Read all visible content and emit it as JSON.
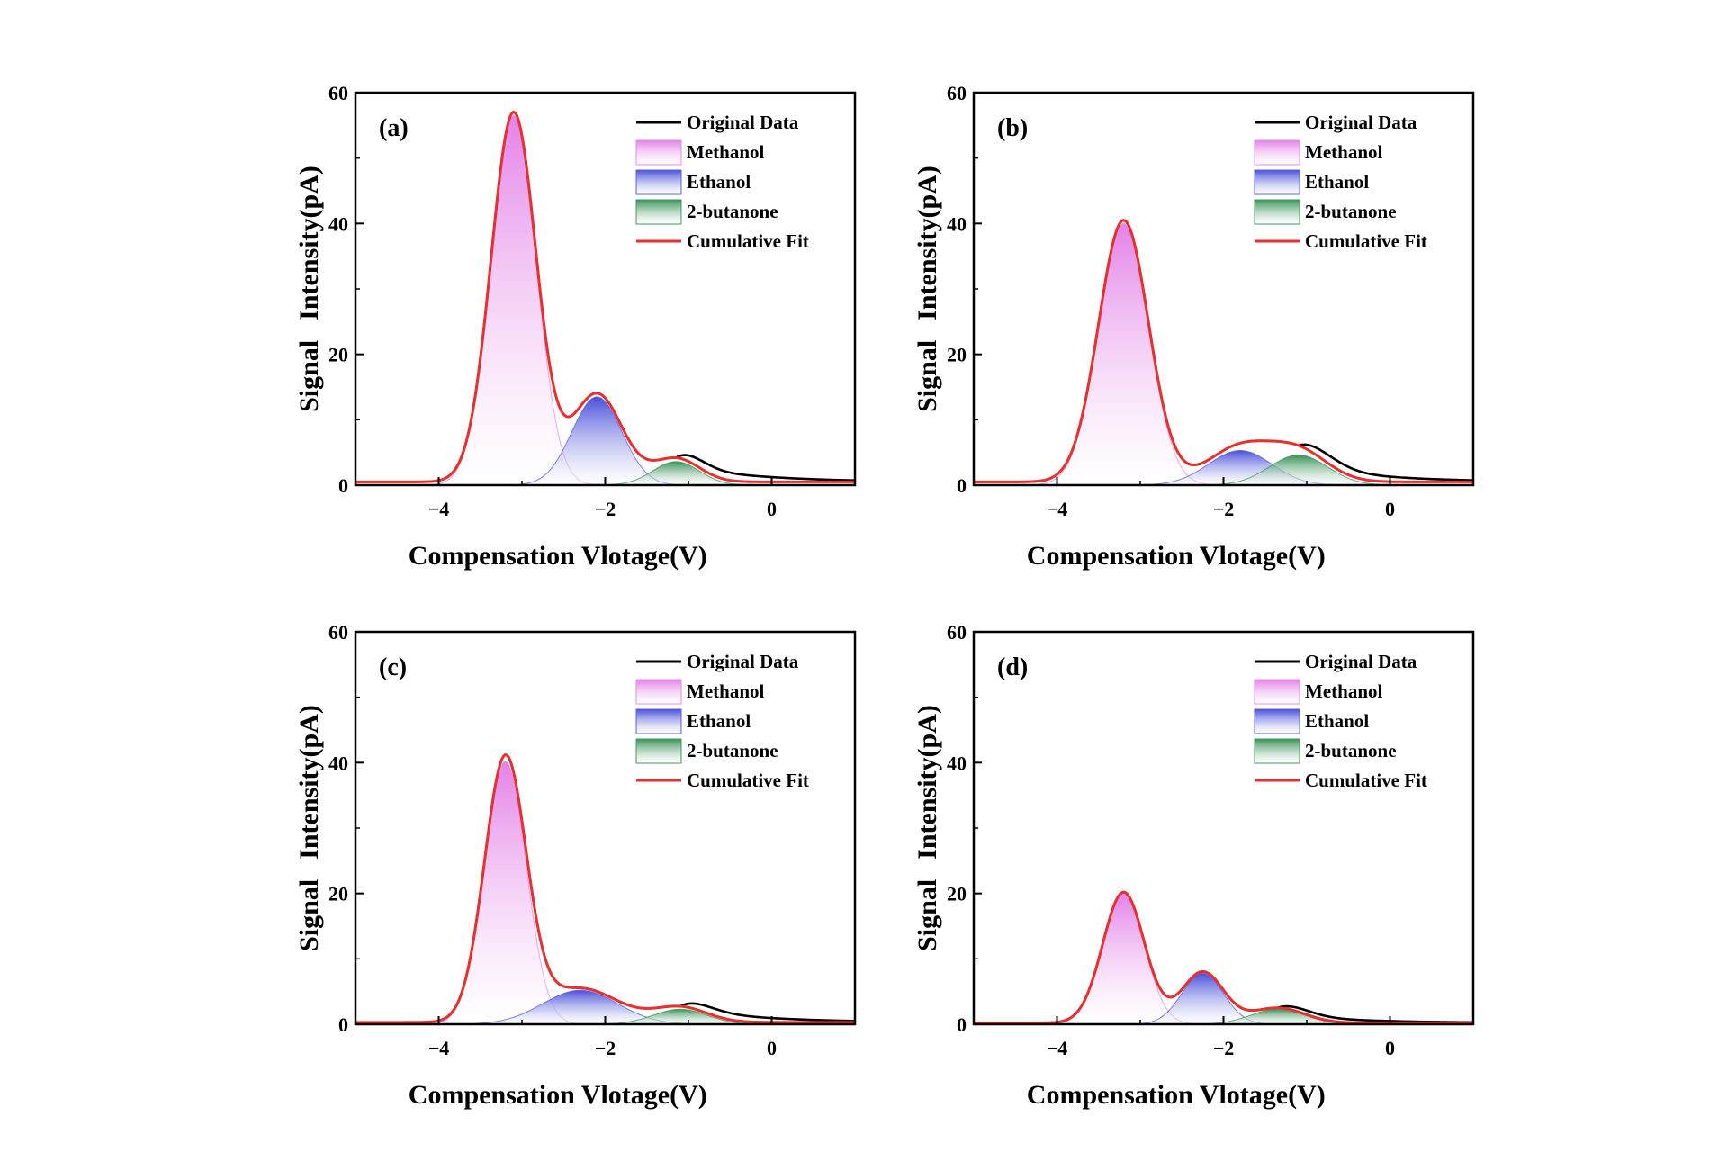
{
  "figure": {
    "legend_entries": [
      {
        "key": "original",
        "label": "Original Data",
        "color": "#000000"
      },
      {
        "key": "methanol",
        "label": "Methanol",
        "color": "#e58ee8"
      },
      {
        "key": "ethanol",
        "label": "Ethanol",
        "color": "#5b63dd"
      },
      {
        "key": "butanone",
        "label": "2-butanone",
        "color": "#3f9a5c"
      },
      {
        "key": "fit",
        "label": "Cumulative Fit",
        "color": "#e8312f"
      }
    ],
    "xlabel": "Compensation Vlotage(V)",
    "ylabel_parts": [
      "Signal",
      "Intensity(pA)"
    ]
  },
  "chart_data": [
    {
      "type": "line",
      "panel": "(a)",
      "xlabel": "Compensation Vlotage(V)",
      "ylabel": "Signal Intensity(pA)",
      "xlim": [
        -5,
        1
      ],
      "ylim": [
        0,
        60
      ],
      "xticks": [
        -4,
        -2,
        0
      ],
      "xtick_labels": [
        "−4",
        "−2",
        "0"
      ],
      "yticks": [
        0,
        20,
        40,
        60
      ],
      "ytick_labels": [
        "0",
        "20",
        "40",
        "60"
      ],
      "baseline": 0.5,
      "peaks": [
        {
          "name": "Methanol",
          "center": -3.1,
          "height": 56.5,
          "sigma": 0.27
        },
        {
          "name": "Ethanol",
          "center": -2.1,
          "height": 13.5,
          "sigma": 0.3
        },
        {
          "name": "2-butanone",
          "center": -1.15,
          "height": 3.6,
          "sigma": 0.28
        }
      ],
      "original_tail": 3.0,
      "legend": [
        "Original Data",
        "Methanol",
        "Ethanol",
        "2-butanone",
        "Cumulative Fit"
      ]
    },
    {
      "type": "line",
      "panel": "(b)",
      "xlabel": "Compensation Vlotage(V)",
      "ylabel": "Signal Intensity(pA)",
      "xlim": [
        -5,
        1
      ],
      "ylim": [
        0,
        60
      ],
      "xticks": [
        -4,
        -2,
        0
      ],
      "xtick_labels": [
        "−4",
        "−2",
        "0"
      ],
      "yticks": [
        0,
        20,
        40,
        60
      ],
      "ytick_labels": [
        "0",
        "20",
        "40",
        "60"
      ],
      "baseline": 0.5,
      "peaks": [
        {
          "name": "Methanol",
          "center": -3.2,
          "height": 40.0,
          "sigma": 0.3
        },
        {
          "name": "Ethanol",
          "center": -1.8,
          "height": 5.3,
          "sigma": 0.38
        },
        {
          "name": "2-butanone",
          "center": -1.1,
          "height": 4.6,
          "sigma": 0.35
        }
      ],
      "original_tail": 3.0,
      "legend": [
        "Original Data",
        "Methanol",
        "Ethanol",
        "2-butanone",
        "Cumulative Fit"
      ]
    },
    {
      "type": "line",
      "panel": "(c)",
      "xlabel": "Compensation Vlotage(V)",
      "ylabel": "Signal Intensity(pA)",
      "xlim": [
        -5,
        1
      ],
      "ylim": [
        0,
        60
      ],
      "xticks": [
        -4,
        -2,
        0
      ],
      "xtick_labels": [
        "−4",
        "−2",
        "0"
      ],
      "yticks": [
        0,
        20,
        40,
        60
      ],
      "ytick_labels": [
        "0",
        "20",
        "40",
        "60"
      ],
      "baseline": 0.3,
      "peaks": [
        {
          "name": "Methanol",
          "center": -3.2,
          "height": 40.2,
          "sigma": 0.25
        },
        {
          "name": "Ethanol",
          "center": -2.3,
          "height": 5.2,
          "sigma": 0.45
        },
        {
          "name": "2-butanone",
          "center": -1.1,
          "height": 2.3,
          "sigma": 0.32
        }
      ],
      "original_tail": 2.5,
      "legend": [
        "Original Data",
        "Methanol",
        "Ethanol",
        "2-butanone",
        "Cumulative Fit"
      ]
    },
    {
      "type": "line",
      "panel": "(d)",
      "xlabel": "Compensation Vlotage(V)",
      "ylabel": "Signal Intensity(pA)",
      "xlim": [
        -5,
        1
      ],
      "ylim": [
        0,
        60
      ],
      "xticks": [
        -4,
        -2,
        0
      ],
      "xtick_labels": [
        "−4",
        "−2",
        "0"
      ],
      "yticks": [
        0,
        20,
        40,
        60
      ],
      "ytick_labels": [
        "0",
        "20",
        "40",
        "60"
      ],
      "baseline": 0.2,
      "peaks": [
        {
          "name": "Methanol",
          "center": -3.2,
          "height": 20.0,
          "sigma": 0.25
        },
        {
          "name": "Ethanol",
          "center": -2.25,
          "height": 7.8,
          "sigma": 0.25
        },
        {
          "name": "2-butanone",
          "center": -1.35,
          "height": 2.3,
          "sigma": 0.32
        }
      ],
      "original_tail": 1.5,
      "legend": [
        "Original Data",
        "Methanol",
        "Ethanol",
        "2-butanone",
        "Cumulative Fit"
      ]
    }
  ]
}
